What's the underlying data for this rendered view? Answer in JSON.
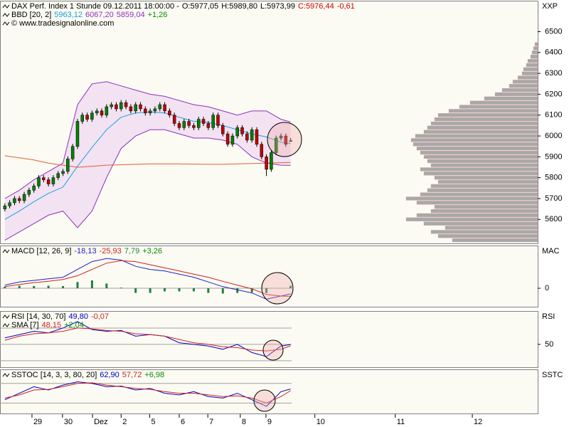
{
  "chart_data": [
    {
      "type": "candlestick",
      "legend": [
        [
          {
            "text": "DAX Perf. Index 1 Stunde  09.12.2011 18:00:00 -",
            "color": "#000000"
          },
          {
            "text": "O:5977,05",
            "color": "#000000"
          },
          {
            "text": "H:5989,80",
            "color": "#000000"
          },
          {
            "text": "L:5973,99",
            "color": "#000000"
          },
          {
            "text": "C:5976,44",
            "color": "#d00000"
          },
          {
            "text": "-0,61",
            "color": "#d00000"
          }
        ],
        [
          {
            "text": "BBD [20, 2]",
            "color": "#000000"
          },
          {
            "text": "5963,12",
            "color": "#1aa0e0"
          },
          {
            "text": "6067,20",
            "color": "#9030c0"
          },
          {
            "text": "5859,04",
            "color": "#9030c0"
          },
          {
            "text": "+1,26",
            "color": "#009000"
          }
        ],
        [
          {
            "text": "© www.tradesignalonline.com",
            "color": "#000000"
          }
        ]
      ],
      "axis_label": "XXP",
      "ylim": [
        5485,
        6645
      ],
      "yticks": [
        5600,
        5700,
        5800,
        5900,
        6000,
        6100,
        6200,
        6300,
        6400,
        6500
      ],
      "xlim": [
        0,
        111
      ],
      "xticks": [
        {
          "value": 6.6,
          "label": "29"
        },
        {
          "value": 12.9,
          "label": "30"
        },
        {
          "value": 19.1,
          "label": "Dez"
        },
        {
          "value": 25,
          "label": "2"
        },
        {
          "value": 30.9,
          "label": "5"
        },
        {
          "value": 37,
          "label": "6"
        },
        {
          "value": 42.9,
          "label": "7"
        },
        {
          "value": 49.6,
          "label": "8"
        },
        {
          "value": 54.9,
          "label": "9"
        },
        {
          "value": 65,
          "label": "10"
        },
        {
          "value": 81.6,
          "label": "11"
        },
        {
          "value": 97.5,
          "label": "12"
        }
      ],
      "up_color": "#008000",
      "down_color": "#c00000",
      "band_fill": "#f2e2f2",
      "ohlc": [
        [
          5650,
          5677,
          5638,
          5665
        ],
        [
          5665,
          5692,
          5653,
          5680
        ],
        [
          5680,
          5712,
          5668,
          5700
        ],
        [
          5700,
          5712,
          5678,
          5690
        ],
        [
          5690,
          5732,
          5678,
          5720
        ],
        [
          5720,
          5752,
          5708,
          5740
        ],
        [
          5740,
          5772,
          5728,
          5760
        ],
        [
          5760,
          5812,
          5748,
          5800
        ],
        [
          5800,
          5812,
          5778,
          5790
        ],
        [
          5790,
          5802,
          5758,
          5770
        ],
        [
          5770,
          5812,
          5758,
          5800
        ],
        [
          5800,
          5832,
          5788,
          5820
        ],
        [
          5820,
          5842,
          5808,
          5830
        ],
        [
          5830,
          5902,
          5818,
          5890
        ],
        [
          5890,
          5962,
          5878,
          5950
        ],
        [
          5950,
          6082,
          5938,
          6070
        ],
        [
          6070,
          6112,
          6058,
          6100
        ],
        [
          6100,
          6112,
          6068,
          6080
        ],
        [
          6080,
          6122,
          6068,
          6110
        ],
        [
          6110,
          6132,
          6098,
          6120
        ],
        [
          6120,
          6132,
          6088,
          6100
        ],
        [
          6100,
          6152,
          6088,
          6140
        ],
        [
          6140,
          6162,
          6128,
          6150
        ],
        [
          6150,
          6162,
          6118,
          6130
        ],
        [
          6130,
          6172,
          6118,
          6160
        ],
        [
          6160,
          6172,
          6128,
          6140
        ],
        [
          6140,
          6152,
          6108,
          6120
        ],
        [
          6120,
          6162,
          6108,
          6150
        ],
        [
          6150,
          6162,
          6118,
          6130
        ],
        [
          6130,
          6142,
          6098,
          6110
        ],
        [
          6110,
          6132,
          6098,
          6120
        ],
        [
          6120,
          6142,
          6108,
          6130
        ],
        [
          6130,
          6162,
          6118,
          6150
        ],
        [
          6150,
          6162,
          6108,
          6120
        ],
        [
          6120,
          6132,
          6088,
          6100
        ],
        [
          6100,
          6112,
          6048,
          6060
        ],
        [
          6060,
          6072,
          6028,
          6040
        ],
        [
          6040,
          6082,
          6028,
          6070
        ],
        [
          6070,
          6082,
          6038,
          6050
        ],
        [
          6050,
          6062,
          6028,
          6040
        ],
        [
          6040,
          6092,
          6028,
          6080
        ],
        [
          6080,
          6092,
          6048,
          6060
        ],
        [
          6060,
          6072,
          6028,
          6040
        ],
        [
          6040,
          6112,
          6028,
          6100
        ],
        [
          6100,
          6112,
          6038,
          6050
        ],
        [
          6050,
          6062,
          5998,
          6010
        ],
        [
          6010,
          6022,
          5948,
          5960
        ],
        [
          5960,
          6012,
          5948,
          6000
        ],
        [
          6000,
          6052,
          5988,
          6040
        ],
        [
          6040,
          6052,
          5998,
          6010
        ],
        [
          6010,
          6022,
          5968,
          5980
        ],
        [
          5980,
          6042,
          5968,
          6030
        ],
        [
          6030,
          6042,
          5948,
          5960
        ],
        [
          5960,
          5972,
          5888,
          5900
        ],
        [
          5900,
          5912,
          5808,
          5840
        ],
        [
          5840,
          5932,
          5828,
          5920
        ],
        [
          5920,
          6002,
          5908,
          5990
        ],
        [
          5990,
          6012,
          5978,
          6000
        ],
        [
          6000,
          6012,
          5948,
          5960
        ],
        [
          5977.05,
          5989.8,
          5973.99,
          5976.44
        ]
      ],
      "x": [
        1,
        4,
        7,
        10,
        13,
        16,
        19,
        22,
        25,
        28,
        31,
        34,
        37,
        40,
        43,
        46,
        49,
        52,
        55,
        58,
        60
      ],
      "series": [
        {
          "color": "#9030c0",
          "values": [
            5700,
            5740,
            5790,
            5830,
            5870,
            6150,
            6250,
            6260,
            6240,
            6220,
            6200,
            6190,
            6170,
            6150,
            6140,
            6120,
            6100,
            6120,
            6120,
            6080,
            6067.2
          ]
        },
        {
          "color": "#1aa0e0",
          "values": [
            5600,
            5640,
            5685,
            5725,
            5755,
            5855,
            5945,
            6030,
            6090,
            6110,
            6115,
            6110,
            6090,
            6070,
            6065,
            6050,
            6030,
            6010,
            5995,
            5970,
            5963.12
          ]
        },
        {
          "color": "#9030c0",
          "values": [
            5500,
            5540,
            5580,
            5620,
            5640,
            5560,
            5640,
            5800,
            5940,
            6000,
            6030,
            6030,
            6010,
            5990,
            5990,
            5980,
            5960,
            5900,
            5870,
            5860,
            5859.04
          ]
        },
        {
          "color": "#e06030",
          "values": [
            5905,
            5895,
            5885,
            5870,
            5860,
            5850,
            5855,
            5860,
            5862,
            5864,
            5866,
            5866,
            5866,
            5865,
            5864,
            5864,
            5866,
            5868,
            5870,
            5872,
            5873
          ]
        }
      ],
      "profile": {
        "color": "#a8a8a8",
        "levels": [
          5500,
          5520,
          5540,
          5560,
          5580,
          5600,
          5620,
          5640,
          5660,
          5680,
          5700,
          5720,
          5740,
          5760,
          5780,
          5800,
          5820,
          5840,
          5860,
          5880,
          5900,
          5920,
          5940,
          5960,
          5980,
          6000,
          6020,
          6040,
          6060,
          6080,
          6100,
          6120,
          6140,
          6160,
          6180,
          6200,
          6220,
          6240,
          6260,
          6280,
          6300,
          6320,
          6340,
          6360,
          6380,
          6400,
          6420,
          6440
        ],
        "volumes": [
          120,
          140,
          150,
          130,
          160,
          185,
          170,
          150,
          145,
          170,
          185,
          165,
          155,
          150,
          140,
          145,
          160,
          165,
          150,
          155,
          160,
          165,
          170,
          175,
          178,
          172,
          160,
          155,
          150,
          145,
          140,
          125,
          110,
          95,
          75,
          60,
          50,
          40,
          35,
          28,
          22,
          20,
          16,
          14,
          10,
          8,
          6,
          4
        ]
      }
    },
    {
      "type": "line",
      "legend": [
        [
          {
            "text": "MACD [12, 26, 9]",
            "color": "#000000"
          },
          {
            "text": "-18,13",
            "color": "#2020c0"
          },
          {
            "text": "-25,93",
            "color": "#d02020"
          },
          {
            "text": "7,79",
            "color": "#208040"
          },
          {
            "text": "+3,26",
            "color": "#009000"
          }
        ]
      ],
      "axis_label": "MAC",
      "ylim": [
        -59,
        134
      ],
      "yticks": [
        0
      ],
      "x": [
        1,
        4,
        7,
        10,
        13,
        16,
        19,
        22,
        25,
        28,
        31,
        34,
        37,
        40,
        43,
        46,
        49,
        52,
        55,
        58,
        60
      ],
      "histogram": {
        "color": "#208040",
        "values": [
          5,
          8,
          7,
          8,
          7,
          20,
          25,
          15,
          2,
          -15,
          -15,
          -10,
          -10,
          -10,
          -15,
          -17,
          -15,
          -13,
          -15,
          0,
          7.79
        ]
      },
      "series": [
        {
          "color": "#2020c0",
          "values": [
            10,
            20,
            25,
            30,
            35,
            60,
            85,
            95,
            90,
            70,
            60,
            55,
            45,
            35,
            20,
            5,
            -5,
            -15,
            -35,
            -25,
            -18.13
          ]
        },
        {
          "color": "#d02020",
          "values": [
            5,
            12,
            18,
            22,
            28,
            40,
            60,
            80,
            88,
            85,
            75,
            65,
            55,
            45,
            35,
            22,
            10,
            -2,
            -20,
            -25,
            -25.93
          ]
        }
      ]
    },
    {
      "type": "line",
      "legend": [
        [
          {
            "text": "RSI [14, 30, 70]",
            "color": "#000000"
          },
          {
            "text": "49,80",
            "color": "#0000c0"
          },
          {
            "text": "-0,07",
            "color": "#d02020"
          }
        ],
        [
          {
            "text": "SMA [7]",
            "color": "#000000"
          },
          {
            "text": "48,15",
            "color": "#d02020"
          },
          {
            "text": "+2,04",
            "color": "#009000"
          }
        ]
      ],
      "axis_label": "RSI",
      "ylim": [
        22,
        90
      ],
      "yticks": [
        50
      ],
      "levels": [
        30,
        70
      ],
      "x": [
        1,
        4,
        7,
        10,
        13,
        16,
        19,
        22,
        25,
        28,
        31,
        34,
        37,
        40,
        43,
        46,
        49,
        52,
        55,
        58,
        60
      ],
      "series": [
        {
          "color": "#0000c0",
          "values": [
            58,
            62,
            66,
            64,
            70,
            78,
            68,
            66,
            67,
            60,
            62,
            60,
            52,
            50,
            48,
            44,
            50,
            40,
            35,
            48,
            49.8
          ]
        },
        {
          "color": "#d02020",
          "values": [
            55,
            60,
            63,
            64,
            66,
            70,
            69,
            67,
            66,
            63,
            62,
            60,
            56,
            52,
            50,
            47,
            46,
            43,
            42,
            44,
            48.15
          ]
        }
      ]
    },
    {
      "type": "line",
      "legend": [
        [
          {
            "text": "SSTOC [14, 3, 3, 80, 20]",
            "color": "#000000"
          },
          {
            "text": "62,90",
            "color": "#0000c0"
          },
          {
            "text": "57,72",
            "color": "#d02020"
          },
          {
            "text": "+6,98",
            "color": "#009000"
          }
        ]
      ],
      "axis_label": "SSTC",
      "ylim": [
        -12,
        121
      ],
      "yticks": [],
      "levels": [
        20,
        80
      ],
      "x": [
        1,
        4,
        7,
        10,
        13,
        16,
        19,
        22,
        25,
        28,
        31,
        34,
        37,
        40,
        43,
        46,
        49,
        52,
        55,
        58,
        60
      ],
      "series": [
        {
          "color": "#0000c0",
          "values": [
            30,
            50,
            70,
            60,
            75,
            85,
            80,
            70,
            72,
            60,
            65,
            50,
            45,
            55,
            40,
            35,
            50,
            30,
            10,
            55,
            62.9
          ]
        },
        {
          "color": "#d02020",
          "values": [
            35,
            45,
            60,
            62,
            70,
            80,
            82,
            75,
            70,
            65,
            62,
            55,
            50,
            50,
            45,
            40,
            42,
            35,
            20,
            40,
            57.72
          ]
        }
      ]
    }
  ]
}
